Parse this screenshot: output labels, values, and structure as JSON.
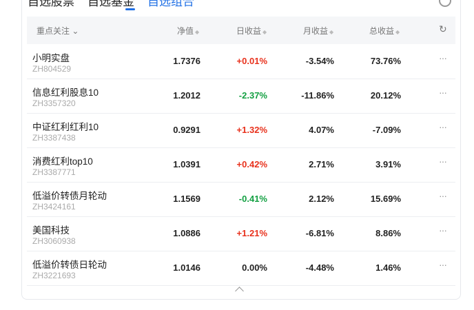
{
  "tabs": [
    {
      "label": "自选股票"
    },
    {
      "label": "自选基金"
    },
    {
      "label": "自选组合"
    }
  ],
  "header": {
    "name": "重点关注",
    "nav": "净值",
    "daily": "日收益",
    "monthly": "月收益",
    "total": "总收益"
  },
  "colors": {
    "up": "#e8311c",
    "down": "#13a042",
    "accent": "#1f6fe5"
  },
  "rows": [
    {
      "name": "小明实盘",
      "code": "ZH804529",
      "nav": "1.7376",
      "daily": "+0.01%",
      "monthly": "-3.54%",
      "total": "73.76%",
      "dir": "up"
    },
    {
      "name": "信息红利股息10",
      "code": "ZH3357320",
      "nav": "1.2012",
      "daily": "-2.37%",
      "monthly": "-11.86%",
      "total": "20.12%",
      "dir": "down"
    },
    {
      "name": "中证红利红利10",
      "code": "ZH3387438",
      "nav": "0.9291",
      "daily": "+1.32%",
      "monthly": "4.07%",
      "total": "-7.09%",
      "dir": "up"
    },
    {
      "name": "消费红利top10",
      "code": "ZH3387771",
      "nav": "1.0391",
      "daily": "+0.42%",
      "monthly": "2.71%",
      "total": "3.91%",
      "dir": "up"
    },
    {
      "name": "低溢价转债月轮动",
      "code": "ZH3424161",
      "nav": "1.1569",
      "daily": "-0.41%",
      "monthly": "2.12%",
      "total": "15.69%",
      "dir": "down"
    },
    {
      "name": "美国科技",
      "code": "ZH3060938",
      "nav": "1.0886",
      "daily": "+1.21%",
      "monthly": "-6.81%",
      "total": "8.86%",
      "dir": "up"
    },
    {
      "name": "低溢价转债日轮动",
      "code": "ZH3221693",
      "nav": "1.0146",
      "daily": "0.00%",
      "monthly": "-4.48%",
      "total": "1.46%",
      "dir": "flat"
    }
  ]
}
